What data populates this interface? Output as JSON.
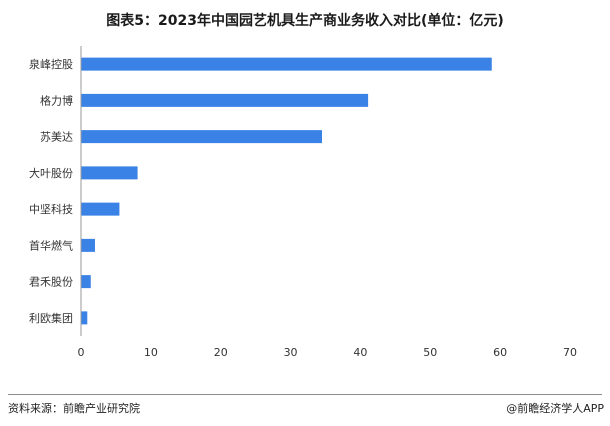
{
  "title": "图表5：2023年中国园艺机具生产商业务收入对比(单位：亿元)",
  "chart_data": {
    "type": "bar",
    "orientation": "horizontal",
    "categories": [
      "泉峰控股",
      "格力博",
      "苏美达",
      "大叶股份",
      "中坚科技",
      "首华燃气",
      "君禾股份",
      "利欧集团"
    ],
    "values": [
      58.8,
      41.1,
      34.5,
      8.1,
      5.5,
      2.0,
      1.4,
      0.9
    ],
    "xlim": [
      0,
      70
    ],
    "xticks": [
      0,
      10,
      20,
      30,
      40,
      50,
      60,
      70
    ],
    "grid": false,
    "colors": {
      "bar": "#3b82e6"
    }
  },
  "footer": {
    "source": "资料来源：前瞻产业研究院",
    "credit": "@前瞻经济学人APP"
  }
}
